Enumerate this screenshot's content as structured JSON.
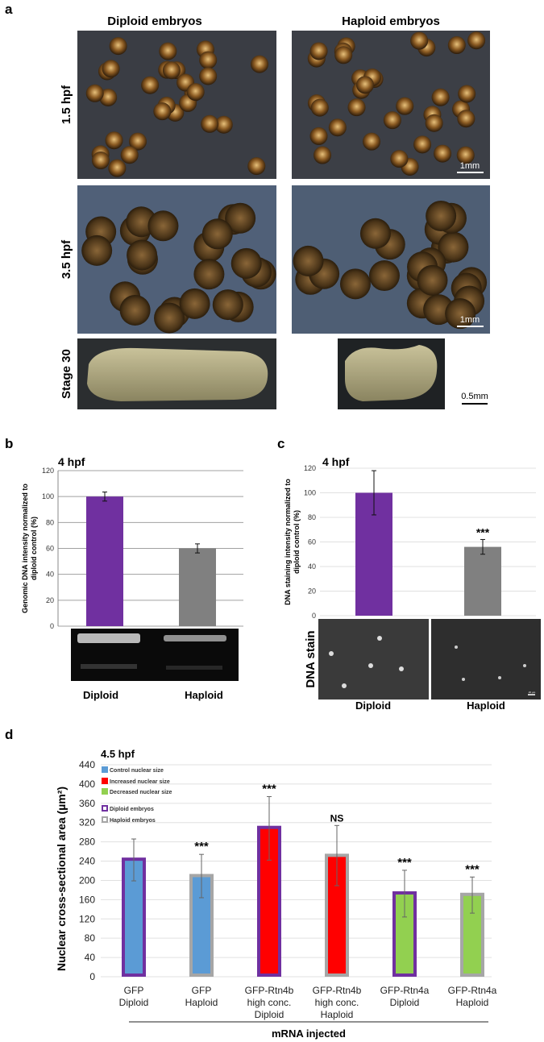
{
  "panel_a": {
    "label": "a",
    "col_headers": [
      "Diploid embryos",
      "Haploid embryos"
    ],
    "row_labels": [
      "1.5 hpf",
      "3.5 hpf",
      "Stage 30"
    ],
    "scale_bars": [
      "1mm",
      "1mm",
      "0.5mm"
    ]
  },
  "chart_data": [
    {
      "panel": "b",
      "type": "bar",
      "title": "4 hpf",
      "ylabel": "Genomic DNA intensity normalized to diploid control (%)",
      "categories": [
        "Diploid",
        "Haploid"
      ],
      "values": [
        100,
        60
      ],
      "errors": [
        3.5,
        3.5
      ],
      "colors": [
        "#7030a0",
        "#808080"
      ],
      "ylim": [
        0,
        120
      ],
      "yticks": [
        0,
        20,
        40,
        60,
        80,
        100,
        120
      ],
      "grid": true,
      "inset_image": "gel"
    },
    {
      "panel": "c",
      "type": "bar",
      "title": "4 hpf",
      "ylabel": "DNA staining intensity normalized to diploid control (%)",
      "categories": [
        "Diploid",
        "Haploid"
      ],
      "values": [
        100,
        56
      ],
      "errors": [
        18,
        6
      ],
      "annotations": [
        "",
        "***"
      ],
      "colors": [
        "#7030a0",
        "#808080"
      ],
      "ylim": [
        0,
        120
      ],
      "yticks": [
        0,
        20,
        40,
        60,
        80,
        100,
        120
      ],
      "grid": true,
      "image_row_label": "DNA stain",
      "scale_label": "20 µm"
    },
    {
      "panel": "d",
      "type": "bar",
      "title": "4.5 hpf",
      "ylabel": "Nuclear cross-sectional area (µm²)",
      "xlabel": "mRNA injected",
      "categories": [
        [
          "GFP",
          "Diploid"
        ],
        [
          "GFP",
          "Haploid"
        ],
        [
          "GFP-Rtn4b",
          "high conc.",
          "Diploid"
        ],
        [
          "GFP-Rtn4b",
          "high conc.",
          "Haploid"
        ],
        [
          "GFP-Rtn4a",
          "Diploid"
        ],
        [
          "GFP-Rtn4a",
          "Haploid"
        ]
      ],
      "values": [
        244,
        210,
        310,
        252,
        174,
        171
      ],
      "error_low": [
        199,
        164,
        242,
        189,
        124,
        132
      ],
      "error_high": [
        286,
        254,
        374,
        314,
        221,
        207
      ],
      "fill_colors": [
        "#5b9bd5",
        "#5b9bd5",
        "#ff0000",
        "#ff0000",
        "#92d050",
        "#92d050"
      ],
      "border_colors": [
        "#7030a0",
        "#a6a6a6",
        "#7030a0",
        "#a6a6a6",
        "#7030a0",
        "#a6a6a6"
      ],
      "annotations": [
        "",
        "***",
        "***",
        "NS",
        "***",
        "***"
      ],
      "ylim": [
        0,
        440
      ],
      "yticks": [
        0,
        40,
        80,
        120,
        160,
        200,
        240,
        280,
        320,
        360,
        400,
        440
      ],
      "grid": true,
      "legend": [
        {
          "label": "Control nuclear size",
          "color": "#5b9bd5",
          "style": "fill"
        },
        {
          "label": "Increased nuclear size",
          "color": "#ff0000",
          "style": "fill"
        },
        {
          "label": "Decreased nuclear size",
          "color": "#92d050",
          "style": "fill"
        },
        {
          "label": "Diploid embryos",
          "color": "#7030a0",
          "style": "outline"
        },
        {
          "label": "Haploid embryos",
          "color": "#a6a6a6",
          "style": "outline"
        }
      ],
      "legend_position": "top-left"
    }
  ]
}
